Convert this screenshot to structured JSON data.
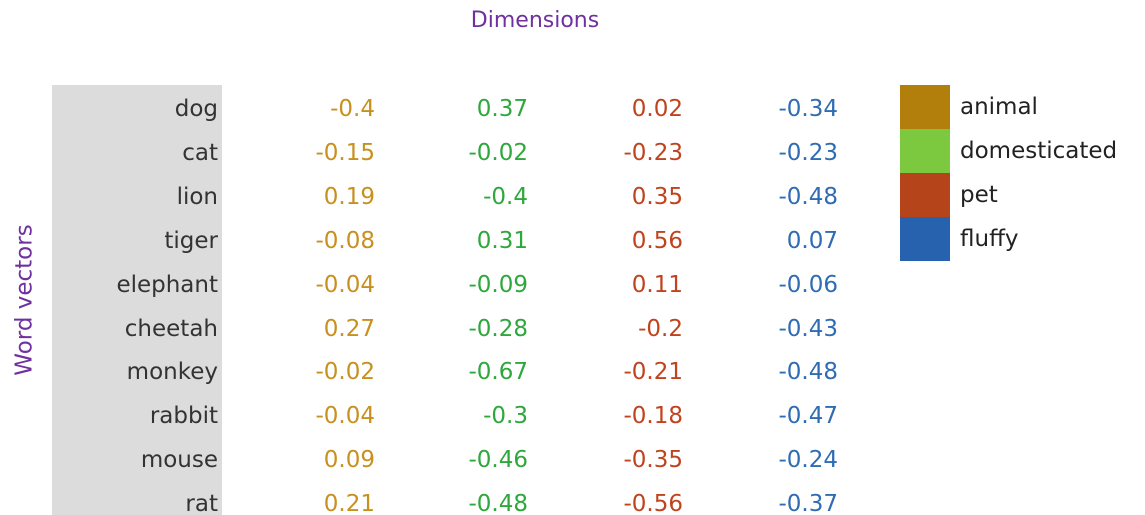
{
  "title": "Dimensions",
  "row_label": "Word vectors",
  "legend": [
    {
      "name": "animal",
      "color": "#b37f0c"
    },
    {
      "name": "domesticated",
      "color": "#7cc93f"
    },
    {
      "name": "pet",
      "color": "#b5441a"
    },
    {
      "name": "fluffy",
      "color": "#2762ae"
    }
  ],
  "table": {
    "rows": [
      [
        "dog",
        -0.4,
        0.37,
        0.02,
        -0.34
      ],
      [
        "cat",
        -0.15,
        -0.02,
        -0.23,
        -0.23
      ],
      [
        "lion",
        0.19,
        -0.4,
        0.35,
        -0.48
      ],
      [
        "tiger",
        -0.08,
        0.31,
        0.56,
        0.07
      ],
      [
        "elephant",
        -0.04,
        -0.09,
        0.11,
        -0.06
      ],
      [
        "cheetah",
        0.27,
        -0.28,
        -0.2,
        -0.43
      ],
      [
        "monkey",
        -0.02,
        -0.67,
        -0.21,
        -0.48
      ],
      [
        "rabbit",
        -0.04,
        -0.3,
        -0.18,
        -0.47
      ],
      [
        "mouse",
        0.09,
        -0.46,
        -0.35,
        -0.24
      ],
      [
        "rat",
        0.21,
        -0.48,
        -0.56,
        -0.37
      ]
    ]
  }
}
